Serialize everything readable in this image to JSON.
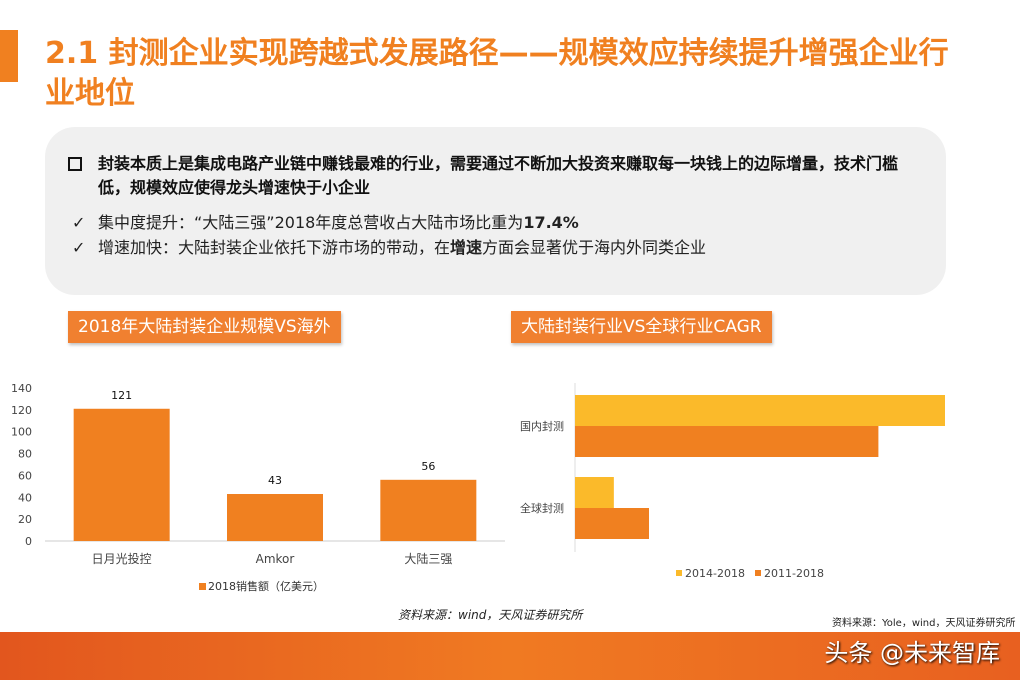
{
  "title": "2.1 封测企业实现跨越式发展路径——规模效应持续提升增强企业行业地位",
  "summary": {
    "main_point": "封装本质上是集成电路产业链中赚钱最难的行业，需要通过不断加大投资来赚取每一块钱上的边际增量，技术门槛低，规模效应使得龙头增速快于小企业",
    "bullets": [
      {
        "prefix": "集中度提升：“大陆三强”2018年度总营收占大陆市场比重为",
        "bold": "17.4%",
        "suffix": ""
      },
      {
        "prefix": "增速加快：大陆封装企业依托下游市场的带动，在",
        "bold": "增速",
        "suffix": "方面会显著优于海内外同类企业"
      }
    ]
  },
  "chart_labels": [
    "2018年大陆封装企业规模VS海外",
    "大陆封装行业VS全球行业CAGR"
  ],
  "chart_data": [
    {
      "type": "bar",
      "categories": [
        "日月光投控",
        "Amkor",
        "大陆三强"
      ],
      "series": [
        {
          "name": "2018销售额（亿美元）",
          "values": [
            121,
            43,
            56
          ],
          "color": "#F08020"
        }
      ],
      "ylim": [
        0,
        140
      ],
      "yticks": [
        0,
        20,
        40,
        60,
        80,
        100,
        120,
        140
      ],
      "data_labels": [
        "121",
        "43",
        "56"
      ],
      "legend": "bottom",
      "grid": false
    },
    {
      "type": "bar",
      "orientation": "horizontal",
      "categories": [
        "国内封测",
        "全球封测"
      ],
      "series": [
        {
          "name": "2014-2018",
          "values": [
            100,
            10.5
          ],
          "color": "#FBBA2A"
        },
        {
          "name": "2011-2018",
          "values": [
            82,
            20
          ],
          "color": "#F08020"
        }
      ],
      "legend": "bottom",
      "grid": false
    }
  ],
  "sources": [
    "资料来源：wind，天风证券研究所",
    "资料来源：Yole，wind，天风证券研究所"
  ],
  "watermark": "头条 @未来智库"
}
